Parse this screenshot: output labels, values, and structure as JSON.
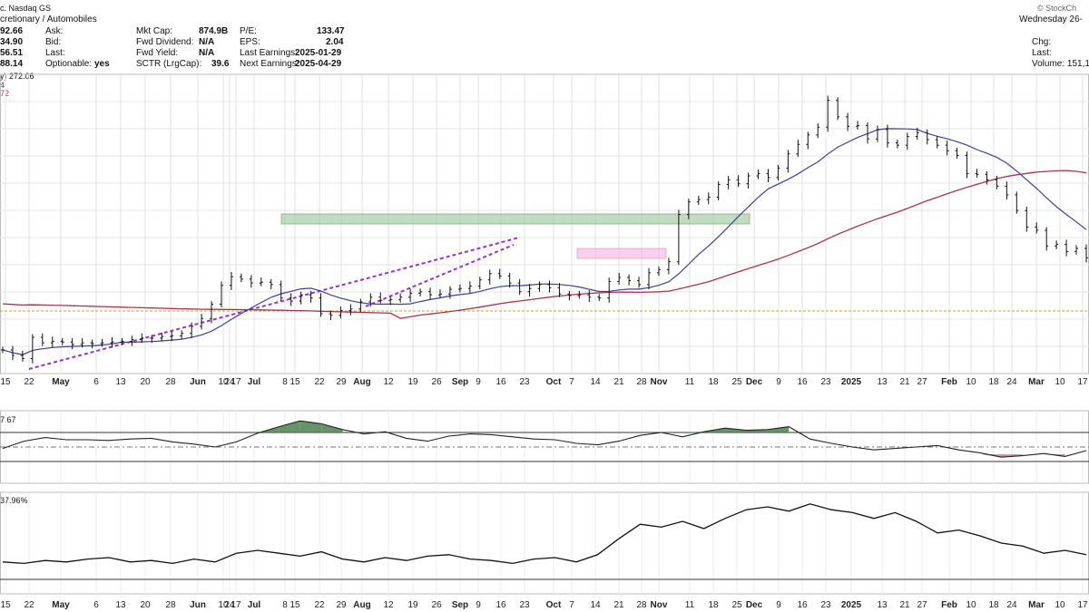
{
  "header": {
    "company_line": "c. Nasdaq GS",
    "sector_line": "cretionary / Automobiles",
    "watermark": "© StockCh",
    "date_text": "Wednesday 26-",
    "price_col": [
      "92.66",
      "34.90",
      "56.51",
      "88.14"
    ],
    "quote_labels": [
      "Ask:",
      "Bid:",
      "Last:",
      "Optionable:"
    ],
    "optionable_value": "yes",
    "stats_labels": [
      "Mkt Cap:",
      "Fwd Dividend:",
      "Fwd Yield:",
      "SCTR (LrgCap):"
    ],
    "stats_values": [
      "874.9B",
      "N/A",
      "N/A",
      "39.6"
    ],
    "pe_labels": [
      "P/E:",
      "EPS:",
      "Last Earnings:",
      "Next Earnings:"
    ],
    "pe_values": [
      "133.47",
      "2.04",
      "2025-01-29",
      "2025-04-29"
    ],
    "right_labels": [
      "Chg:",
      "Last:"
    ],
    "volume_text": "Volume: 151,1",
    "legend_line1": "y) 272.06",
    "legend_line2": "4",
    "legend_line3": "72",
    "panel2_label": "7.67",
    "panel3_label": "37.96%",
    "colors": {
      "ma_short": "#3b3fa0",
      "ma_long": "#b0304a",
      "trendline": "#9b30d0",
      "zone_green": "#8fbf8f",
      "zone_pink": "#f0b0e0",
      "support": "#d4a020"
    }
  },
  "chart_data": [
    {
      "type": "ohlc-bar",
      "title": "",
      "x_tick_labels": [
        "15",
        "22",
        "May",
        "6",
        "13",
        "20",
        "28",
        "Jun",
        "10",
        "17",
        "24",
        "Jul",
        "8",
        "15",
        "22",
        "29",
        "Aug",
        "12",
        "19",
        "26",
        "Sep",
        "9",
        "16",
        "23",
        "Oct",
        "7",
        "14",
        "21",
        "28",
        "Nov",
        "11",
        "18",
        "25",
        "Dec",
        "9",
        "16",
        "23",
        "2025",
        "13",
        "21",
        "27",
        "Feb",
        "10",
        "18",
        "24",
        "Mar",
        "10",
        "17"
      ],
      "x_tick_bold": [
        false,
        false,
        true,
        false,
        false,
        false,
        false,
        true,
        false,
        false,
        false,
        true,
        false,
        false,
        false,
        false,
        true,
        false,
        false,
        false,
        true,
        false,
        false,
        false,
        true,
        false,
        false,
        false,
        false,
        true,
        false,
        false,
        false,
        true,
        false,
        false,
        false,
        true,
        false,
        false,
        false,
        true,
        false,
        false,
        false,
        true,
        false,
        false
      ],
      "close_series": [
        150,
        143,
        139,
        166,
        159,
        161,
        160,
        157,
        159,
        158,
        159,
        160,
        161,
        163,
        165,
        165,
        167,
        168,
        171,
        180,
        190,
        208,
        232,
        243,
        240,
        235,
        236,
        233,
        216,
        212,
        220,
        216,
        196,
        194,
        200,
        202,
        211,
        217,
        213,
        214,
        217,
        222,
        224,
        220,
        221,
        227,
        228,
        231,
        239,
        247,
        244,
        235,
        224,
        228,
        233,
        229,
        221,
        219,
        220,
        217,
        216,
        237,
        242,
        238,
        233,
        248,
        252,
        262,
        322,
        338,
        341,
        344,
        360,
        366,
        361,
        371,
        374,
        369,
        381,
        399,
        411,
        423,
        433,
        467,
        446,
        434,
        435,
        418,
        430,
        413,
        410,
        421,
        426,
        417,
        410,
        403,
        397,
        374,
        373,
        366,
        358,
        347,
        327,
        306,
        302,
        282,
        284,
        275,
        279,
        267
      ],
      "dates_note": ""
    },
    {
      "type": "line",
      "title": "",
      "values": [
        48,
        58,
        63,
        60,
        60,
        59,
        61,
        62,
        57,
        54,
        50,
        57,
        69,
        78,
        86,
        82,
        74,
        68,
        71,
        62,
        58,
        65,
        68,
        67,
        64,
        61,
        60,
        55,
        53,
        58,
        66,
        70,
        64,
        71,
        76,
        73,
        74,
        78,
        61,
        55,
        50,
        46,
        48,
        50,
        52,
        46,
        42,
        36,
        38,
        41,
        37,
        45
      ]
    },
    {
      "type": "line",
      "title": "",
      "values": [
        22,
        21,
        23,
        22,
        24,
        25,
        22,
        23,
        21,
        24,
        22,
        28,
        30,
        28,
        26,
        29,
        24,
        22,
        25,
        23,
        26,
        27,
        24,
        23,
        21,
        24,
        25,
        22,
        27,
        38,
        48,
        46,
        50,
        45,
        52,
        58,
        60,
        57,
        62,
        58,
        56,
        52,
        56,
        50,
        42,
        44,
        40,
        35,
        33,
        28,
        30,
        27
      ]
    }
  ]
}
